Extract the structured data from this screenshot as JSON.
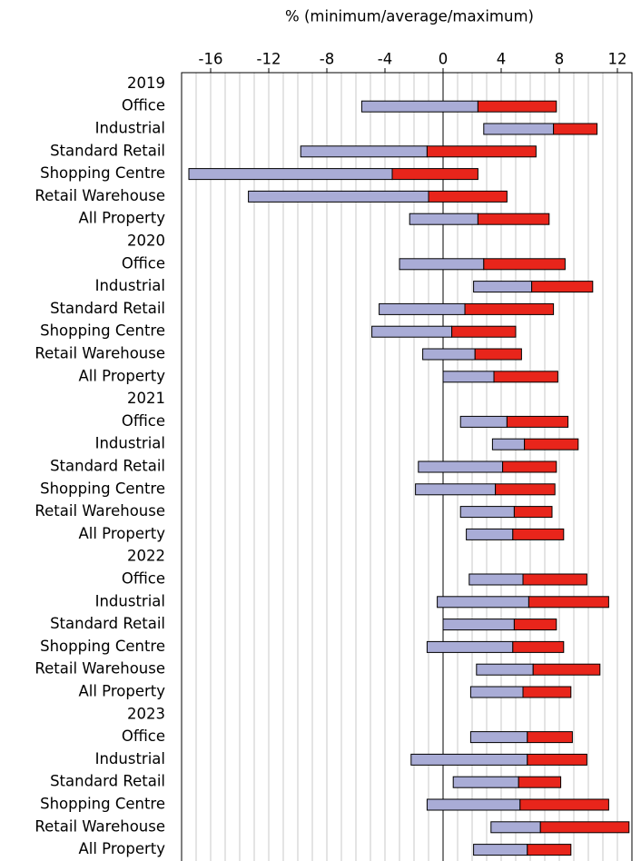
{
  "chart_data": {
    "type": "floating-bar",
    "title": "% (minimum/average/maximum)",
    "categories": [
      "2019",
      "Office",
      "Industrial",
      "Standard Retail",
      "Shopping Centre",
      "Retail Warehouse",
      "All Property",
      "2020",
      "Office",
      "Industrial",
      "Standard Retail",
      "Shopping Centre",
      "Retail Warehouse",
      "All Property",
      "2021",
      "Office",
      "Industrial",
      "Standard Retail",
      "Shopping Centre",
      "Retail Warehouse",
      "All Property",
      "2022",
      "Office",
      "Industrial",
      "Standard Retail",
      "Shopping Centre",
      "Retail Warehouse",
      "All Property",
      "2023",
      "Office",
      "Industrial",
      "Standard Retail",
      "Shopping Centre",
      "Retail Warehouse",
      "All Property"
    ],
    "low": [
      null,
      -5.6,
      2.8,
      -9.8,
      -17.5,
      -13.4,
      -2.3,
      null,
      -3.0,
      2.1,
      -4.4,
      -4.9,
      -1.4,
      0,
      null,
      1.2,
      3.4,
      -1.7,
      -1.9,
      1.2,
      1.6,
      null,
      1.8,
      -0.4,
      0,
      -1.1,
      2.3,
      1.9,
      null,
      1.9,
      -2.2,
      0.7,
      -1.1,
      3.3,
      2.1
    ],
    "mid": [
      null,
      2.4,
      7.6,
      -1.1,
      -3.5,
      -1.0,
      2.4,
      null,
      2.8,
      6.1,
      1.5,
      0.6,
      2.2,
      3.5,
      null,
      4.4,
      5.6,
      4.1,
      3.6,
      4.9,
      4.8,
      null,
      5.5,
      5.9,
      4.9,
      4.8,
      6.2,
      5.5,
      null,
      5.8,
      5.8,
      5.2,
      5.3,
      6.7,
      5.8
    ],
    "high": [
      null,
      7.8,
      10.6,
      6.4,
      2.4,
      4.4,
      7.3,
      null,
      8.4,
      10.3,
      7.6,
      5.0,
      5.4,
      7.9,
      null,
      8.6,
      9.3,
      7.8,
      7.7,
      7.5,
      8.3,
      null,
      9.9,
      11.4,
      7.8,
      8.3,
      10.8,
      8.8,
      null,
      8.9,
      9.9,
      8.1,
      11.4,
      12.8,
      8.8
    ],
    "low_color": "#a9acd6",
    "high_color": "#e8251b",
    "xlim": [
      -18,
      13
    ],
    "xticks": [
      -16,
      -12,
      -8,
      -4,
      0,
      4,
      8,
      12
    ],
    "grid": true,
    "grid_step": 1
  }
}
